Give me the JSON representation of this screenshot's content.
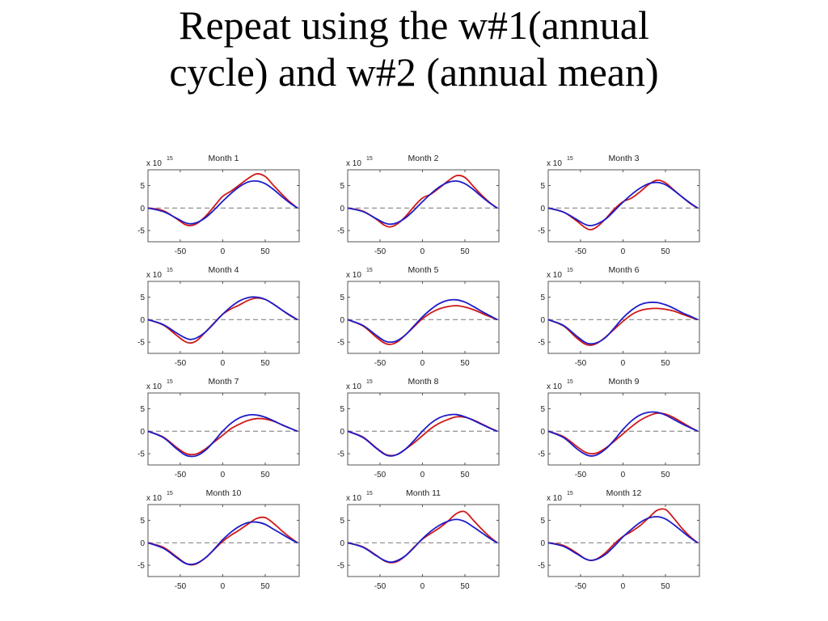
{
  "slide": {
    "title_line1": "Repeat using the w#1(annual",
    "title_line2": "cycle) and w#2 (annual mean)"
  },
  "axis_common": {
    "multiplier_label": "x 10",
    "multiplier_exponent": "15",
    "x_ticks": [
      -50,
      0,
      50
    ],
    "y_ticks": [
      5,
      0,
      -5
    ],
    "xlim": [
      -88,
      90
    ],
    "ylim": [
      -7.5,
      8.5
    ],
    "zero_line": "dashed",
    "grid": false
  },
  "colors": {
    "series1": "#d01818",
    "series2": "#1c1cc8",
    "zero_line": "#777777",
    "axes": "#555555"
  },
  "chart_data": [
    {
      "type": "line",
      "title": "Month 1",
      "x": [
        -88,
        -70,
        -55,
        -45,
        -38,
        -30,
        -20,
        -10,
        0,
        10,
        20,
        30,
        40,
        50,
        60,
        70,
        80,
        88
      ],
      "series": [
        {
          "values": [
            0,
            -0.6,
            -2.3,
            -3.6,
            -3.9,
            -3.4,
            -1.8,
            0.4,
            2.6,
            3.8,
            5.2,
            6.6,
            7.6,
            7,
            5,
            3,
            1.2,
            0
          ]
        },
        {
          "values": [
            0,
            -0.8,
            -2.2,
            -3.2,
            -3.5,
            -3.2,
            -2.1,
            -0.4,
            1.5,
            3.3,
            4.8,
            5.8,
            6,
            5.4,
            4.1,
            2.5,
            1,
            0
          ]
        }
      ]
    },
    {
      "type": "line",
      "title": "Month 2",
      "x": [
        -88,
        -70,
        -55,
        -45,
        -38,
        -30,
        -20,
        -10,
        0,
        10,
        20,
        30,
        40,
        50,
        60,
        70,
        80,
        88
      ],
      "series": [
        {
          "values": [
            0,
            -0.7,
            -2.4,
            -3.8,
            -4.2,
            -3.6,
            -1.9,
            0.3,
            2.2,
            3.1,
            4.5,
            6,
            7.2,
            6.8,
            4.8,
            2.8,
            1.1,
            0
          ]
        },
        {
          "values": [
            0,
            -0.8,
            -2.3,
            -3.3,
            -3.6,
            -3.3,
            -2.2,
            -0.5,
            1.4,
            3.2,
            4.7,
            5.7,
            6,
            5.4,
            4.1,
            2.5,
            1,
            0
          ]
        }
      ]
    },
    {
      "type": "line",
      "title": "Month 3",
      "x": [
        -88,
        -70,
        -55,
        -45,
        -38,
        -30,
        -20,
        -10,
        0,
        10,
        20,
        30,
        40,
        50,
        60,
        70,
        80,
        88
      ],
      "series": [
        {
          "values": [
            0,
            -0.9,
            -2.8,
            -4.3,
            -4.8,
            -4.1,
            -2.3,
            -0.2,
            1.4,
            2.2,
            3.6,
            5.2,
            6.2,
            5.6,
            4,
            2.4,
            0.9,
            0
          ]
        },
        {
          "values": [
            0,
            -0.9,
            -2.5,
            -3.6,
            -3.9,
            -3.5,
            -2.4,
            -0.6,
            1.3,
            3,
            4.4,
            5.4,
            5.7,
            5.2,
            3.9,
            2.4,
            1,
            0
          ]
        }
      ]
    },
    {
      "type": "line",
      "title": "Month 4",
      "x": [
        -88,
        -70,
        -55,
        -45,
        -38,
        -30,
        -20,
        -10,
        0,
        10,
        20,
        30,
        40,
        50,
        60,
        70,
        80,
        88
      ],
      "series": [
        {
          "values": [
            0,
            -1.2,
            -3.4,
            -4.8,
            -5.2,
            -4.6,
            -2.7,
            -0.7,
            1.2,
            2.4,
            3.3,
            4.3,
            4.8,
            4.5,
            3.4,
            2.1,
            0.8,
            0
          ]
        },
        {
          "values": [
            0,
            -1.1,
            -2.9,
            -4,
            -4.4,
            -4,
            -2.7,
            -0.8,
            1.2,
            2.9,
            4.2,
            4.9,
            5,
            4.5,
            3.4,
            2.1,
            0.9,
            0
          ]
        }
      ]
    },
    {
      "type": "line",
      "title": "Month 5",
      "x": [
        -88,
        -70,
        -55,
        -45,
        -38,
        -30,
        -20,
        -10,
        0,
        10,
        20,
        30,
        40,
        50,
        60,
        70,
        80,
        88
      ],
      "series": [
        {
          "values": [
            0,
            -1.4,
            -3.8,
            -5.2,
            -5.5,
            -5,
            -3.4,
            -1.6,
            0.2,
            1.5,
            2.4,
            2.9,
            3.1,
            2.8,
            2.2,
            1.4,
            0.6,
            0
          ]
        },
        {
          "values": [
            0,
            -1.3,
            -3.4,
            -4.7,
            -5,
            -4.7,
            -3.4,
            -1.4,
            0.6,
            2.3,
            3.6,
            4.3,
            4.4,
            3.9,
            2.9,
            1.8,
            0.8,
            0
          ]
        }
      ]
    },
    {
      "type": "line",
      "title": "Month 6",
      "x": [
        -88,
        -70,
        -55,
        -45,
        -38,
        -30,
        -20,
        -10,
        0,
        10,
        20,
        30,
        40,
        50,
        60,
        70,
        80,
        88
      ],
      "series": [
        {
          "values": [
            0,
            -1.4,
            -4,
            -5.4,
            -5.7,
            -5.2,
            -3.8,
            -2.1,
            -0.4,
            1.1,
            2,
            2.4,
            2.5,
            2.3,
            1.9,
            1.2,
            0.5,
            0
          ]
        },
        {
          "values": [
            0,
            -1.3,
            -3.6,
            -5,
            -5.4,
            -5.1,
            -3.9,
            -1.8,
            0.4,
            2.1,
            3.3,
            3.8,
            3.8,
            3.3,
            2.5,
            1.5,
            0.7,
            0
          ]
        }
      ]
    },
    {
      "type": "line",
      "title": "Month 7",
      "x": [
        -88,
        -70,
        -55,
        -45,
        -38,
        -30,
        -20,
        -10,
        0,
        10,
        20,
        30,
        40,
        50,
        60,
        70,
        80,
        88
      ],
      "series": [
        {
          "values": [
            0,
            -1.3,
            -3.5,
            -4.8,
            -5.2,
            -5,
            -3.9,
            -2.4,
            -0.9,
            0.6,
            1.6,
            2.4,
            2.8,
            2.7,
            2.2,
            1.4,
            0.6,
            0
          ]
        },
        {
          "values": [
            0,
            -1.4,
            -3.8,
            -5.2,
            -5.6,
            -5.4,
            -4.2,
            -2.2,
            0,
            1.8,
            3,
            3.6,
            3.6,
            3.1,
            2.3,
            1.4,
            0.6,
            0
          ]
        }
      ]
    },
    {
      "type": "line",
      "title": "Month 8",
      "x": [
        -88,
        -70,
        -55,
        -45,
        -38,
        -30,
        -20,
        -10,
        0,
        10,
        20,
        30,
        40,
        50,
        60,
        70,
        80,
        88
      ],
      "series": [
        {
          "values": [
            0,
            -1.3,
            -3.6,
            -5,
            -5.4,
            -5.2,
            -4,
            -2.6,
            -1,
            0.6,
            1.8,
            2.6,
            3.2,
            3.1,
            2.5,
            1.6,
            0.7,
            0
          ]
        },
        {
          "values": [
            0,
            -1.4,
            -3.7,
            -5.1,
            -5.5,
            -5.2,
            -4,
            -2.1,
            0,
            1.8,
            3,
            3.6,
            3.7,
            3.2,
            2.4,
            1.5,
            0.6,
            0
          ]
        }
      ]
    },
    {
      "type": "line",
      "title": "Month 9",
      "x": [
        -88,
        -70,
        -55,
        -45,
        -38,
        -30,
        -20,
        -10,
        0,
        10,
        20,
        30,
        40,
        50,
        60,
        70,
        80,
        88
      ],
      "series": [
        {
          "values": [
            0,
            -1.2,
            -3.3,
            -4.6,
            -5,
            -4.8,
            -3.7,
            -2.2,
            -0.6,
            1,
            2.4,
            3.4,
            4,
            3.8,
            3,
            1.9,
            0.8,
            0
          ]
        },
        {
          "values": [
            0,
            -1.4,
            -3.8,
            -5.1,
            -5.5,
            -5.2,
            -3.9,
            -1.9,
            0.4,
            2.3,
            3.6,
            4.2,
            4.2,
            3.6,
            2.6,
            1.6,
            0.7,
            0
          ]
        }
      ]
    },
    {
      "type": "line",
      "title": "Month 10",
      "x": [
        -88,
        -70,
        -55,
        -45,
        -38,
        -30,
        -20,
        -10,
        0,
        10,
        20,
        30,
        40,
        50,
        60,
        70,
        80,
        88
      ],
      "series": [
        {
          "values": [
            0,
            -1,
            -3,
            -4.4,
            -4.9,
            -4.6,
            -3.3,
            -1.5,
            0.3,
            1.7,
            2.9,
            4.2,
            5.4,
            5.6,
            4.3,
            2.6,
            1.1,
            0
          ]
        },
        {
          "values": [
            0,
            -1.2,
            -3.2,
            -4.5,
            -4.8,
            -4.5,
            -3.3,
            -1.4,
            0.7,
            2.4,
            3.7,
            4.5,
            4.6,
            4.1,
            3,
            1.9,
            0.8,
            0
          ]
        }
      ]
    },
    {
      "type": "line",
      "title": "Month 11",
      "x": [
        -88,
        -70,
        -55,
        -45,
        -38,
        -30,
        -20,
        -10,
        0,
        10,
        20,
        30,
        40,
        50,
        60,
        70,
        80,
        88
      ],
      "series": [
        {
          "values": [
            0,
            -0.9,
            -2.7,
            -4,
            -4.4,
            -4.2,
            -2.9,
            -1,
            0.8,
            2.1,
            3.3,
            4.8,
            6.5,
            6.9,
            5,
            3,
            1.2,
            0
          ]
        },
        {
          "values": [
            0,
            -1,
            -2.8,
            -3.9,
            -4.3,
            -4,
            -2.9,
            -1.1,
            0.9,
            2.6,
            3.9,
            4.8,
            5.2,
            4.7,
            3.5,
            2.2,
            0.9,
            0
          ]
        }
      ]
    },
    {
      "type": "line",
      "title": "Month 12",
      "x": [
        -88,
        -70,
        -55,
        -45,
        -38,
        -30,
        -20,
        -10,
        0,
        10,
        20,
        30,
        40,
        50,
        60,
        70,
        80,
        88
      ],
      "series": [
        {
          "values": [
            0,
            -0.6,
            -2.2,
            -3.5,
            -3.9,
            -3.5,
            -2.1,
            -0.2,
            1.4,
            2.5,
            3.8,
            5.5,
            7.2,
            7.4,
            5.4,
            3.1,
            1.2,
            0
          ]
        },
        {
          "values": [
            0,
            -0.8,
            -2.4,
            -3.5,
            -3.9,
            -3.6,
            -2.5,
            -0.7,
            1.3,
            3,
            4.5,
            5.5,
            5.8,
            5.3,
            4,
            2.5,
            1,
            0
          ]
        }
      ]
    }
  ]
}
